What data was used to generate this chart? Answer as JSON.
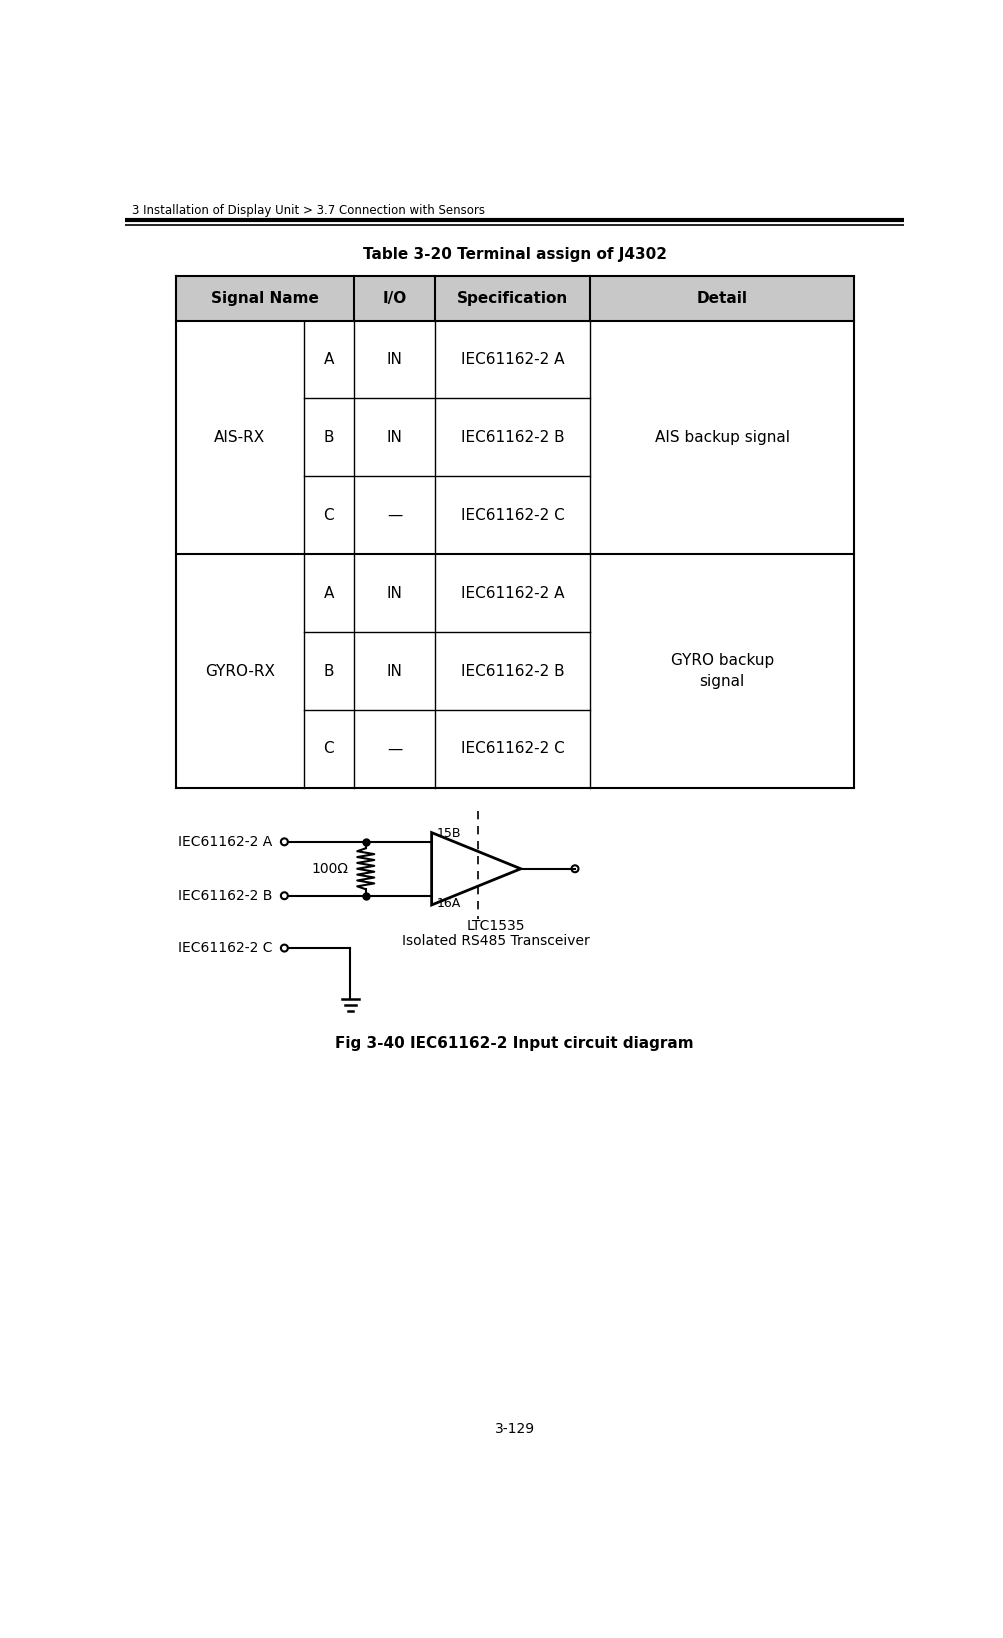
{
  "header_text": "3 Installation of Display Unit > 3.7 Connection with Sensors",
  "page_number": "3-129",
  "table_title": "Table 3-20 Terminal assign of J4302",
  "fig_caption": "Fig 3-40 IEC61162-2 Input circuit diagram",
  "colors": {
    "header_bg": "#c8c8c8",
    "border": "#000000",
    "text": "#000000"
  },
  "circuit": {
    "label_A": "IEC61162-2 A",
    "label_B": "IEC61162-2 B",
    "label_C": "IEC61162-2 C",
    "pin_15B": "15B",
    "pin_16A": "16A",
    "resistor": "100Ω",
    "ic_name": "LTC1535",
    "ic_desc": "Isolated RS485 Transceiver"
  }
}
